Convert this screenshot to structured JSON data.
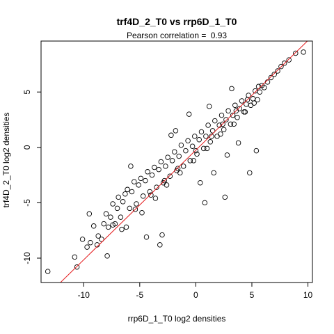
{
  "chart_data": {
    "type": "scatter",
    "title": "trf4D_2_T0 vs rrp6D_1_T0",
    "subtitle_label": "Pearson correlation = ",
    "subtitle_value": "0.93",
    "xlabel": "rrp6D_1_T0 log2 densities",
    "ylabel": "trf4D_2_T0 log2 densities",
    "xlim": [
      -13.8,
      10.4
    ],
    "ylim": [
      -12.2,
      9.6
    ],
    "x_ticks": [
      -10,
      -5,
      0,
      5,
      10
    ],
    "y_ticks": [
      -10,
      -5,
      0,
      5
    ],
    "x_tick_labels": [
      "-10",
      "-5",
      "0",
      "5",
      "10"
    ],
    "y_tick_labels": [
      "-10",
      "-5",
      "0",
      "5"
    ],
    "regression_line": {
      "slope": 0.99,
      "intercept": -0.25,
      "color": "#e41a1c"
    },
    "points": {
      "x": [
        -13.2,
        -10.6,
        -10.8,
        -10.1,
        -9.7,
        -9.4,
        -9.1,
        -8.7,
        -8.4,
        -8.2,
        -8.0,
        -7.8,
        -7.6,
        -7.4,
        -7.2,
        -7.0,
        -6.9,
        -6.7,
        -6.5,
        -6.3,
        -6.1,
        -5.9,
        -5.7,
        -5.5,
        -5.3,
        -5.1,
        -4.9,
        -4.7,
        -4.5,
        -4.3,
        -4.1,
        -3.9,
        -3.7,
        -3.5,
        -3.3,
        -3.1,
        -2.9,
        -2.7,
        -2.5,
        -2.3,
        -2.1,
        -1.9,
        -1.7,
        -1.5,
        -1.3,
        -1.1,
        -0.9,
        -0.7,
        -0.5,
        -0.3,
        -0.1,
        0.1,
        0.3,
        0.5,
        0.7,
        0.9,
        1.1,
        1.3,
        1.5,
        1.7,
        1.9,
        2.1,
        2.3,
        2.5,
        2.7,
        2.9,
        3.1,
        3.3,
        3.5,
        3.7,
        3.9,
        4.1,
        4.3,
        4.5,
        4.7,
        4.9,
        5.1,
        5.3,
        5.5,
        5.7,
        5.9,
        6.1,
        6.4,
        6.7,
        7.0,
        7.3,
        7.6,
        7.9,
        8.3,
        8.9,
        9.6,
        -3.2,
        -3.0,
        0.8,
        1.2,
        5.4,
        -9.5,
        -7.9,
        -6.2,
        -4.4,
        2.6,
        4.8,
        -1.8,
        -0.6,
        3.2,
        -5.8,
        -2.2,
        0.4,
        1.6,
        2.8,
        3.8,
        -8.8,
        -6.6,
        -4.8,
        -3.6,
        -2.6,
        -1.4,
        -0.2,
        1.0,
        2.2,
        3.4,
        4.4,
        5.2,
        -7.4,
        -5.4,
        -4.0,
        -2.8,
        -1.6,
        0.0,
        1.4,
        2.4,
        3.6,
        4.6,
        5.6
      ],
      "y": [
        -11.2,
        -10.8,
        -9.9,
        -8.3,
        -9.0,
        -8.6,
        -7.1,
        -8.0,
        -8.3,
        -6.9,
        -6.0,
        -7.2,
        -6.3,
        -5.1,
        -6.9,
        -5.5,
        -4.5,
        -6.3,
        -4.9,
        -4.2,
        -3.8,
        -5.5,
        -4.0,
        -3.1,
        -5.1,
        -3.4,
        -2.8,
        -4.4,
        -3.0,
        -2.2,
        -4.0,
        -2.5,
        -1.8,
        -3.6,
        -2.0,
        -1.3,
        -3.2,
        -1.7,
        -0.9,
        -2.6,
        -1.2,
        -0.4,
        -2.1,
        -0.8,
        0.2,
        -1.7,
        -0.3,
        0.6,
        -1.2,
        0.1,
        1.0,
        -0.6,
        0.7,
        1.4,
        -0.1,
        1.0,
        2.0,
        0.5,
        1.5,
        2.4,
        1.0,
        2.0,
        2.9,
        1.6,
        2.5,
        3.3,
        2.1,
        2.9,
        3.8,
        2.7,
        3.5,
        4.2,
        3.2,
        3.9,
        4.7,
        3.8,
        4.4,
        5.1,
        4.3,
        5.0,
        5.6,
        5.4,
        5.9,
        6.3,
        6.6,
        6.9,
        7.3,
        7.6,
        7.9,
        8.5,
        8.6,
        -8.8,
        -7.9,
        -5.0,
        3.7,
        -0.3,
        -6.0,
        -9.8,
        -7.2,
        -8.1,
        -4.5,
        -2.3,
        1.5,
        3.0,
        5.3,
        -1.7,
        1.1,
        -3.2,
        -2.3,
        -0.7,
        0.4,
        -8.8,
        -7.4,
        -5.9,
        -4.6,
        -3.4,
        -2.3,
        -1.2,
        -0.1,
        1.2,
        2.1,
        3.2,
        4.0,
        -7.0,
        -5.6,
        -4.3,
        -3.0,
        -1.9,
        -0.3,
        1.0,
        2.1,
        3.3,
        4.3,
        5.5
      ]
    }
  }
}
